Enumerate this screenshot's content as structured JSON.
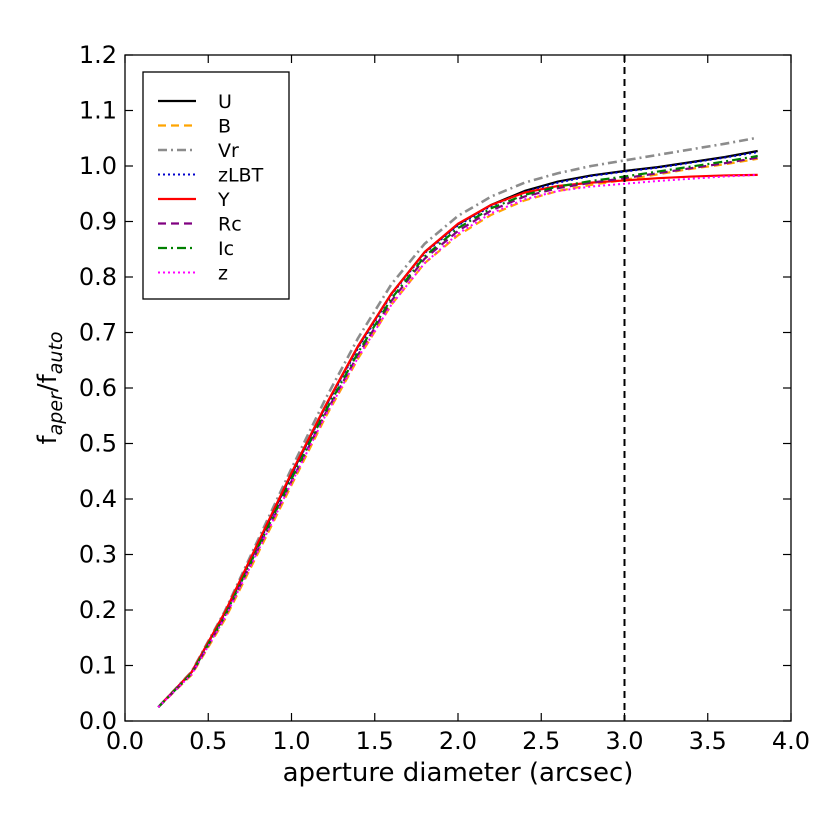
{
  "chart_data": {
    "type": "line",
    "title": "",
    "xlabel": "aperture diameter (arcsec)",
    "ylabel": {
      "f1": "f",
      "sub1": "aper",
      "slash": "/f",
      "sub2": "auto"
    },
    "xlim": [
      0.0,
      4.0
    ],
    "ylim": [
      0.0,
      1.2
    ],
    "xticks": [
      0.0,
      0.5,
      1.0,
      1.5,
      2.0,
      2.5,
      3.0,
      3.5,
      4.0
    ],
    "xtick_labels": [
      "0.0",
      "0.5",
      "1.0",
      "1.5",
      "2.0",
      "2.5",
      "3.0",
      "3.5",
      "4.0"
    ],
    "yticks": [
      0.0,
      0.1,
      0.2,
      0.3,
      0.4,
      0.5,
      0.6,
      0.7,
      0.8,
      0.9,
      1.0,
      1.1,
      1.2
    ],
    "ytick_labels": [
      "0.0",
      "0.1",
      "0.2",
      "0.3",
      "0.4",
      "0.5",
      "0.6",
      "0.7",
      "0.8",
      "0.9",
      "1.0",
      "1.1",
      "1.2"
    ],
    "grid": false,
    "legend_position": "upper-left",
    "vertical_line": {
      "x": 3.0,
      "style": "dashed",
      "color": "#000000"
    },
    "x": [
      0.2,
      0.4,
      0.6,
      0.8,
      1.0,
      1.2,
      1.4,
      1.6,
      1.8,
      2.0,
      2.2,
      2.4,
      2.6,
      2.8,
      3.0,
      3.2,
      3.4,
      3.6,
      3.8
    ],
    "series": [
      {
        "name": "U",
        "color": "#000000",
        "dash": "",
        "width": 2.2,
        "values": [
          0.025,
          0.088,
          0.195,
          0.32,
          0.445,
          0.565,
          0.675,
          0.77,
          0.845,
          0.895,
          0.93,
          0.955,
          0.972,
          0.983,
          0.991,
          0.998,
          1.007,
          1.016,
          1.027
        ]
      },
      {
        "name": "B",
        "color": "#FFA500",
        "dash": "8,5",
        "width": 2.2,
        "values": [
          0.025,
          0.083,
          0.183,
          0.303,
          0.425,
          0.545,
          0.653,
          0.75,
          0.825,
          0.875,
          0.912,
          0.938,
          0.955,
          0.966,
          0.975,
          0.985,
          0.995,
          1.003,
          1.013
        ]
      },
      {
        "name": "Vr",
        "color": "#8c8c8c",
        "dash": "9,4,2,4",
        "width": 2.6,
        "values": [
          0.025,
          0.089,
          0.198,
          0.327,
          0.455,
          0.578,
          0.69,
          0.787,
          0.86,
          0.91,
          0.945,
          0.97,
          0.987,
          1.0,
          1.01,
          1.02,
          1.03,
          1.04,
          1.051
        ]
      },
      {
        "name": "zLBT",
        "color": "#0000cc",
        "dash": "2,3",
        "width": 2.0,
        "values": [
          0.025,
          0.087,
          0.193,
          0.318,
          0.443,
          0.563,
          0.672,
          0.768,
          0.843,
          0.893,
          0.928,
          0.953,
          0.97,
          0.982,
          0.99,
          0.997,
          1.006,
          1.015,
          1.025
        ]
      },
      {
        "name": "Y",
        "color": "#ff0000",
        "dash": "",
        "width": 2.2,
        "values": [
          0.025,
          0.088,
          0.196,
          0.322,
          0.447,
          0.566,
          0.676,
          0.77,
          0.845,
          0.896,
          0.93,
          0.952,
          0.964,
          0.97,
          0.974,
          0.978,
          0.981,
          0.983,
          0.984
        ]
      },
      {
        "name": "Rc",
        "color": "#800080",
        "dash": "8,5",
        "width": 2.2,
        "values": [
          0.025,
          0.085,
          0.188,
          0.31,
          0.432,
          0.552,
          0.66,
          0.757,
          0.833,
          0.883,
          0.92,
          0.945,
          0.96,
          0.97,
          0.978,
          0.987,
          0.996,
          1.005,
          1.015
        ]
      },
      {
        "name": "Ic",
        "color": "#008000",
        "dash": "9,4,2,4",
        "width": 2.2,
        "values": [
          0.025,
          0.086,
          0.19,
          0.313,
          0.436,
          0.556,
          0.664,
          0.761,
          0.837,
          0.888,
          0.924,
          0.948,
          0.963,
          0.973,
          0.981,
          0.99,
          0.999,
          1.008,
          1.018
        ]
      },
      {
        "name": "z",
        "color": "#ff00ff",
        "dash": "2,3",
        "width": 2.0,
        "values": [
          0.025,
          0.084,
          0.186,
          0.307,
          0.429,
          0.548,
          0.655,
          0.75,
          0.825,
          0.878,
          0.915,
          0.94,
          0.955,
          0.963,
          0.968,
          0.973,
          0.977,
          0.981,
          0.984
        ]
      }
    ]
  }
}
